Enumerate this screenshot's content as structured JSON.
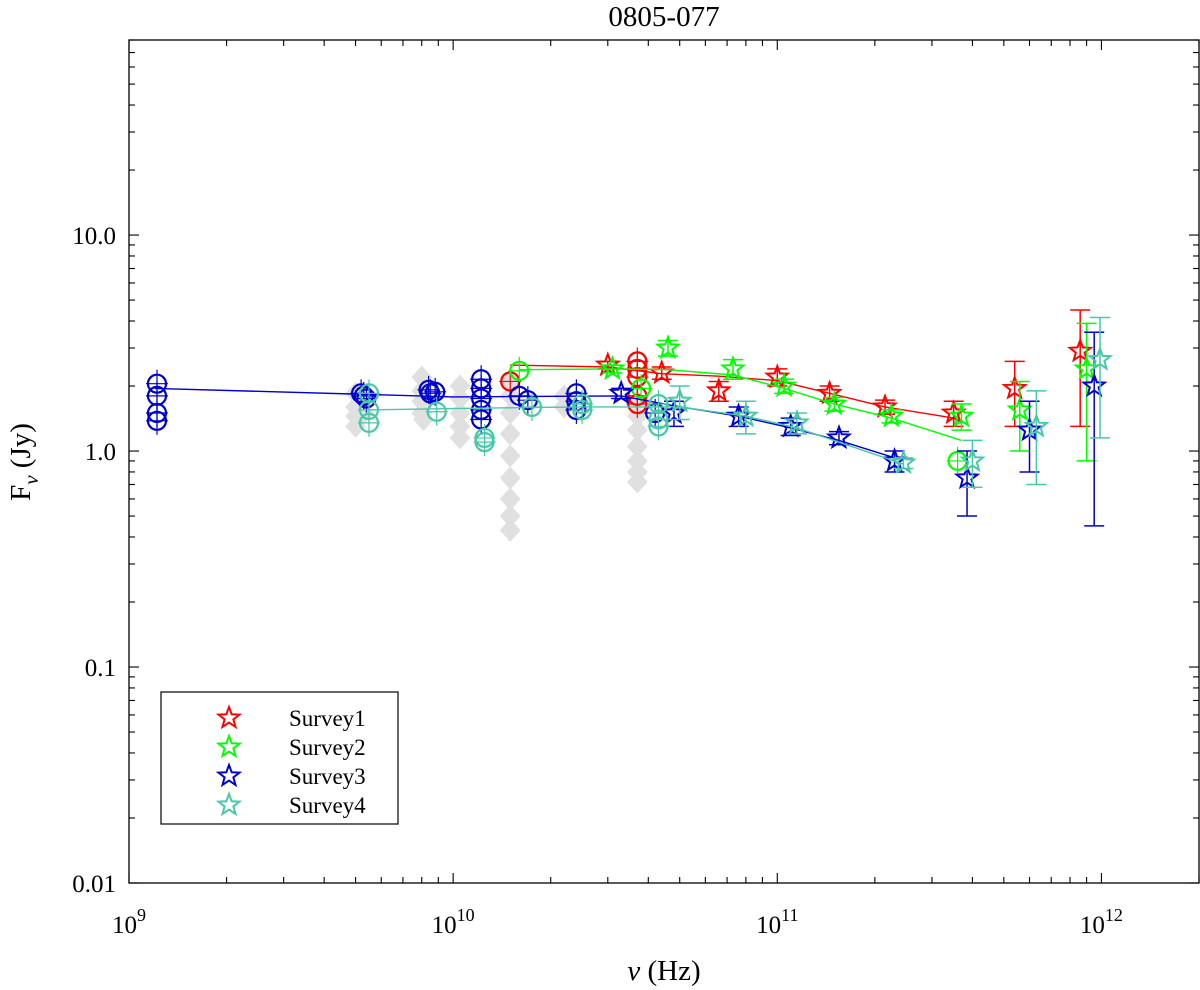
{
  "chart_data": {
    "type": "scatter",
    "scale": {
      "x": "log",
      "y": "log"
    },
    "title": "0805-077",
    "xlabel": "ν (Hz)",
    "ylabel": "Fν (Jy)",
    "xlim": [
      1000000000.0,
      2000000000000.0
    ],
    "ylim": [
      0.01,
      80
    ],
    "x_ticks": [
      {
        "value": 1000000000.0,
        "base": "10",
        "exp": "9"
      },
      {
        "value": 10000000000.0,
        "base": "10",
        "exp": "10"
      },
      {
        "value": 100000000000.0,
        "base": "10",
        "exp": "11"
      },
      {
        "value": 1000000000000.0,
        "base": "10",
        "exp": "12"
      }
    ],
    "y_ticks": [
      {
        "value": 0.01,
        "label": "0.01"
      },
      {
        "value": 0.1,
        "label": "0.1"
      },
      {
        "value": 1,
        "label": "1.0"
      },
      {
        "value": 10,
        "label": "10.0"
      }
    ],
    "legend": {
      "position": "bottom-left",
      "entries": [
        {
          "label": "Survey1",
          "color": "#ff0000"
        },
        {
          "label": "Survey2",
          "color": "#00ff00"
        },
        {
          "label": "Survey3",
          "color": "#0000cd"
        },
        {
          "label": "Survey4",
          "color": "#48c8a8"
        }
      ]
    },
    "background_points": {
      "color": "#e0e0e0",
      "points": [
        [
          5000000000.0,
          1.85
        ],
        [
          5000000000.0,
          1.6
        ],
        [
          5000000000.0,
          1.45
        ],
        [
          5000000000.0,
          1.3
        ],
        [
          5200000000.0,
          1.7
        ],
        [
          5300000000.0,
          1.5
        ],
        [
          8000000000.0,
          2.2
        ],
        [
          8000000000.0,
          1.9
        ],
        [
          8000000000.0,
          1.7
        ],
        [
          8000000000.0,
          1.5
        ],
        [
          8100000000.0,
          1.4
        ],
        [
          10500000000.0,
          2.0
        ],
        [
          10500000000.0,
          1.75
        ],
        [
          10500000000.0,
          1.5
        ],
        [
          10500000000.0,
          1.3
        ],
        [
          10500000000.0,
          1.15
        ],
        [
          15000000000.0,
          2.1
        ],
        [
          15000000000.0,
          1.8
        ],
        [
          15000000000.0,
          1.5
        ],
        [
          15000000000.0,
          1.2
        ],
        [
          15000000000.0,
          0.95
        ],
        [
          15000000000.0,
          0.75
        ],
        [
          15000000000.0,
          0.6
        ],
        [
          15000000000.0,
          0.5
        ],
        [
          15000000000.0,
          0.43
        ],
        [
          22000000000.0,
          1.8
        ],
        [
          22000000000.0,
          1.6
        ],
        [
          37000000000.0,
          1.7
        ],
        [
          37000000000.0,
          1.45
        ],
        [
          37000000000.0,
          1.25
        ],
        [
          37000000000.0,
          1.05
        ],
        [
          37000000000.0,
          0.9
        ],
        [
          37000000000.0,
          0.8
        ],
        [
          37000000000.0,
          0.72
        ]
      ]
    },
    "series": [
      {
        "name": "Survey1",
        "color": "#ff0000",
        "circles": [
          [
            15000000000.0,
            2.1
          ],
          [
            37000000000.0,
            2.6
          ],
          [
            37000000000.0,
            2.4
          ],
          [
            37000000000.0,
            2.2
          ],
          [
            37000000000.0,
            1.8
          ],
          [
            37000000000.0,
            1.65
          ]
        ],
        "stars": [
          [
            30000000000.0,
            2.5,
            0.1
          ],
          [
            44000000000.0,
            2.3,
            0.15
          ],
          [
            66000000000.0,
            1.9,
            0.2
          ],
          [
            100000000000.0,
            2.2,
            0.2
          ],
          [
            145000000000.0,
            1.85,
            0.15
          ],
          [
            215000000000.0,
            1.6,
            0.12
          ],
          [
            350000000000.0,
            1.5,
            0.2
          ],
          [
            540000000000.0,
            1.95,
            0.65
          ],
          [
            860000000000.0,
            2.9,
            1.6
          ]
        ],
        "line": [
          [
            15000000000.0,
            2.5
          ],
          [
            30000000000.0,
            2.45
          ],
          [
            44000000000.0,
            2.28
          ],
          [
            66000000000.0,
            2.22
          ],
          [
            100000000000.0,
            2.12
          ],
          [
            145000000000.0,
            1.85
          ],
          [
            215000000000.0,
            1.6
          ],
          [
            350000000000.0,
            1.42
          ]
        ]
      },
      {
        "name": "Survey2",
        "color": "#00ff00",
        "circles": [
          [
            16000000000.0,
            2.35
          ],
          [
            38000000000.0,
            1.95
          ],
          [
            360000000000.0,
            0.9
          ]
        ],
        "stars": [
          [
            31000000000.0,
            2.4,
            0.1
          ],
          [
            46000000000.0,
            3.0,
            0.25
          ],
          [
            73000000000.0,
            2.4,
            0.25
          ],
          [
            105000000000.0,
            2.0,
            0.15
          ],
          [
            150000000000.0,
            1.65,
            0.12
          ],
          [
            225000000000.0,
            1.45,
            0.1
          ],
          [
            370000000000.0,
            1.45,
            0.2
          ],
          [
            560000000000.0,
            1.55,
            0.55
          ],
          [
            900000000000.0,
            2.4,
            1.5
          ]
        ],
        "line": [
          [
            16000000000.0,
            2.38
          ],
          [
            31000000000.0,
            2.4
          ],
          [
            46000000000.0,
            2.38
          ],
          [
            73000000000.0,
            2.25
          ],
          [
            105000000000.0,
            1.95
          ],
          [
            150000000000.0,
            1.65
          ],
          [
            225000000000.0,
            1.42
          ],
          [
            370000000000.0,
            1.12
          ]
        ]
      },
      {
        "name": "Survey3",
        "color": "#0000cd",
        "circles": [
          [
            1220000000.0,
            2.05
          ],
          [
            1220000000.0,
            1.8
          ],
          [
            1220000000.0,
            1.5
          ],
          [
            1220000000.0,
            1.38
          ],
          [
            5200000000.0,
            1.85
          ],
          [
            5300000000.0,
            1.8
          ],
          [
            5400000000.0,
            1.75
          ],
          [
            8400000000.0,
            1.92
          ],
          [
            8500000000.0,
            1.85
          ],
          [
            8800000000.0,
            1.88
          ],
          [
            12200000000.0,
            2.15
          ],
          [
            12200000000.0,
            1.95
          ],
          [
            12200000000.0,
            1.75
          ],
          [
            12200000000.0,
            1.55
          ],
          [
            12200000000.0,
            1.4
          ],
          [
            16000000000.0,
            1.8
          ],
          [
            17000000000.0,
            1.72
          ],
          [
            24000000000.0,
            1.85
          ],
          [
            24000000000.0,
            1.7
          ],
          [
            24000000000.0,
            1.55
          ],
          [
            42000000000.0,
            1.5
          ]
        ],
        "stars": [
          [
            33000000000.0,
            1.85,
            0.1
          ],
          [
            48000000000.0,
            1.5,
            0.2
          ],
          [
            76000000000.0,
            1.45,
            0.15
          ],
          [
            110000000000.0,
            1.3,
            0.12
          ],
          [
            155000000000.0,
            1.15,
            0.08
          ],
          [
            230000000000.0,
            0.9,
            0.1
          ],
          [
            385000000000.0,
            0.75,
            0.25
          ],
          [
            600000000000.0,
            1.25,
            0.45
          ],
          [
            950000000000.0,
            2.0,
            1.55
          ]
        ],
        "line": [
          [
            1200000000.0,
            1.95
          ],
          [
            10000000000.0,
            1.78
          ],
          [
            33000000000.0,
            1.8
          ],
          [
            48000000000.0,
            1.62
          ],
          [
            76000000000.0,
            1.45
          ],
          [
            110000000000.0,
            1.28
          ],
          [
            155000000000.0,
            1.12
          ],
          [
            230000000000.0,
            0.93
          ]
        ]
      },
      {
        "name": "Survey4",
        "color": "#48c8a8",
        "circles": [
          [
            5500000000.0,
            1.85
          ],
          [
            5500000000.0,
            1.55
          ],
          [
            5500000000.0,
            1.35
          ],
          [
            8900000000.0,
            1.52
          ],
          [
            12500000000.0,
            1.15
          ],
          [
            12500000000.0,
            1.1
          ],
          [
            17500000000.0,
            1.6
          ],
          [
            25000000000.0,
            1.65
          ],
          [
            25000000000.0,
            1.55
          ],
          [
            43000000000.0,
            1.65
          ],
          [
            43000000000.0,
            1.4
          ],
          [
            43000000000.0,
            1.3
          ]
        ],
        "stars": [
          [
            50000000000.0,
            1.7,
            0.3
          ],
          [
            80000000000.0,
            1.45,
            0.25
          ],
          [
            115000000000.0,
            1.35,
            0.15
          ],
          [
            245000000000.0,
            0.88,
            0.05
          ],
          [
            400000000000.0,
            0.9,
            0.22
          ],
          [
            630000000000.0,
            1.3,
            0.6
          ],
          [
            990000000000.0,
            2.65,
            1.5
          ]
        ],
        "line": [
          [
            5500000000.0,
            1.55
          ],
          [
            12500000000.0,
            1.58
          ],
          [
            25000000000.0,
            1.6
          ],
          [
            50000000000.0,
            1.6
          ],
          [
            80000000000.0,
            1.45
          ],
          [
            115000000000.0,
            1.28
          ],
          [
            245000000000.0,
            0.87
          ]
        ]
      }
    ]
  }
}
